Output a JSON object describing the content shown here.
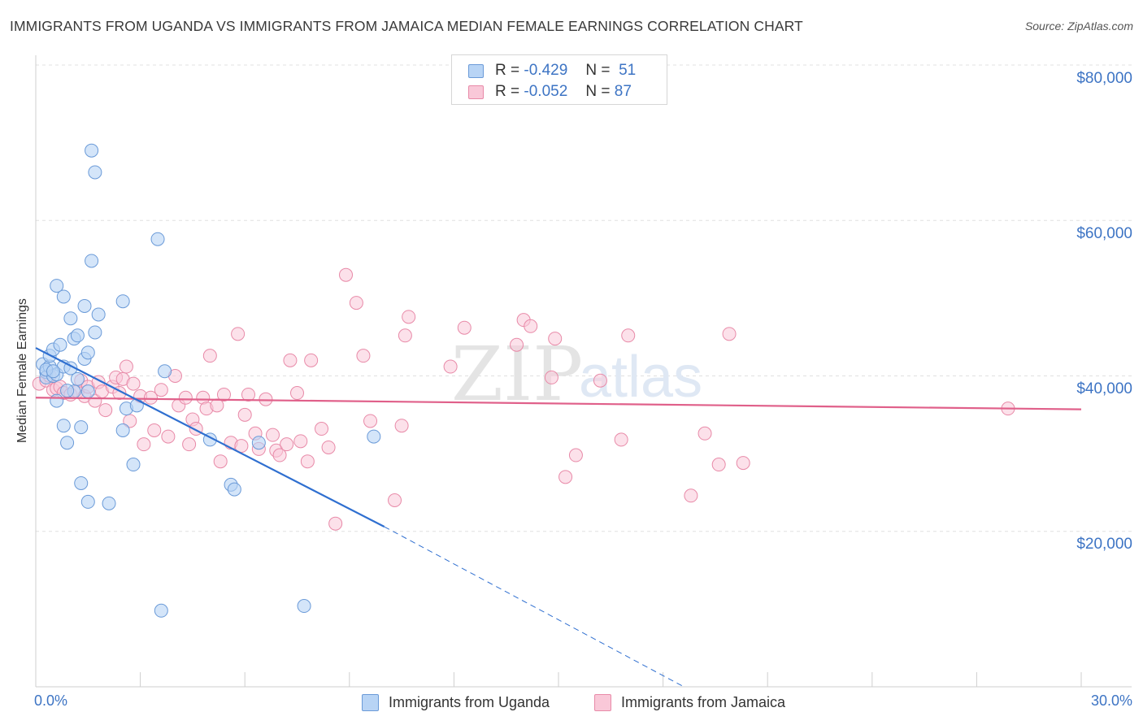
{
  "title": "IMMIGRANTS FROM UGANDA VS IMMIGRANTS FROM JAMAICA MEDIAN FEMALE EARNINGS CORRELATION CHART",
  "source": "Source: ZipAtlas.com",
  "watermark": {
    "zip": "ZIP",
    "atlas": "atlas"
  },
  "stats": {
    "uganda": {
      "r_label": "R =",
      "r_value": "-0.429",
      "n_label": "N =",
      "n_value": "51"
    },
    "jamaica": {
      "r_label": "R =",
      "r_value": "-0.052",
      "n_label": "N =",
      "n_value": "87"
    }
  },
  "legend": {
    "uganda": "Immigrants from Uganda",
    "jamaica": "Immigrants from Jamaica"
  },
  "colors": {
    "uganda_fill": "#b8d4f5",
    "uganda_stroke": "#6a9ad8",
    "uganda_line": "#2f6fd0",
    "jamaica_fill": "#f9c8d8",
    "jamaica_stroke": "#e88aa8",
    "jamaica_line": "#e0608a",
    "tick_text": "#3d74c4",
    "grid": "#e0e0e0"
  },
  "chart_data": {
    "type": "scatter",
    "title": "IMMIGRANTS FROM UGANDA VS IMMIGRANTS FROM JAMAICA MEDIAN FEMALE EARNINGS CORRELATION CHART",
    "xlabel": "",
    "ylabel": "Median Female Earnings",
    "xlim": [
      0,
      30
    ],
    "ylim": [
      0,
      80000
    ],
    "ytick_values": [
      20000,
      40000,
      60000,
      80000
    ],
    "ytick_labels": [
      "$20,000",
      "$40,000",
      "$60,000",
      "$80,000"
    ],
    "xtick_values": [
      0,
      3,
      6,
      9,
      12,
      15,
      18,
      21,
      24,
      27,
      30
    ],
    "xtick_labels_shown": [
      "0.0%",
      "30.0%"
    ],
    "grid": true,
    "series": [
      {
        "name": "Immigrants from Uganda",
        "r": -0.429,
        "n": 51,
        "trend": {
          "x_start": 0,
          "y_start": 43600,
          "x_solid_end": 10,
          "y_solid_end": 20600,
          "x_dashed_end": 18.6,
          "y_dashed_end": 0
        },
        "points": [
          [
            0.2,
            41.5
          ],
          [
            0.3,
            40.5
          ],
          [
            0.3,
            39.8
          ],
          [
            0.4,
            41.2
          ],
          [
            0.4,
            42.6
          ],
          [
            0.5,
            40.0
          ],
          [
            0.5,
            43.4
          ],
          [
            0.6,
            51.6
          ],
          [
            0.6,
            40.2
          ],
          [
            0.6,
            36.8
          ],
          [
            0.7,
            44.0
          ],
          [
            0.8,
            33.6
          ],
          [
            0.8,
            41.2
          ],
          [
            0.8,
            50.2
          ],
          [
            0.9,
            31.4
          ],
          [
            1.0,
            47.4
          ],
          [
            1.1,
            44.8
          ],
          [
            1.1,
            38.0
          ],
          [
            1.2,
            39.6
          ],
          [
            1.2,
            45.2
          ],
          [
            1.3,
            33.4
          ],
          [
            1.3,
            26.2
          ],
          [
            1.4,
            49.0
          ],
          [
            1.4,
            42.2
          ],
          [
            1.5,
            43.0
          ],
          [
            1.5,
            38.0
          ],
          [
            1.5,
            23.8
          ],
          [
            1.6,
            54.8
          ],
          [
            1.6,
            69.0
          ],
          [
            1.7,
            66.2
          ],
          [
            1.7,
            45.6
          ],
          [
            1.8,
            47.9
          ],
          [
            2.1,
            23.6
          ],
          [
            2.5,
            33.0
          ],
          [
            2.5,
            49.6
          ],
          [
            2.6,
            35.8
          ],
          [
            2.8,
            28.6
          ],
          [
            2.9,
            36.2
          ],
          [
            3.5,
            57.6
          ],
          [
            3.6,
            9.8
          ],
          [
            3.7,
            40.6
          ],
          [
            5.0,
            31.8
          ],
          [
            5.6,
            26.0
          ],
          [
            5.7,
            25.4
          ],
          [
            6.4,
            31.4
          ],
          [
            7.7,
            10.4
          ],
          [
            9.7,
            32.2
          ],
          [
            0.3,
            40.8
          ],
          [
            0.5,
            40.6
          ],
          [
            0.9,
            38.1
          ],
          [
            1.0,
            41.0
          ]
        ]
      },
      {
        "name": "Immigrants from Jamaica",
        "r": -0.052,
        "n": 87,
        "trend": {
          "x_start": 0,
          "y_start": 37200,
          "x_end": 30,
          "y_end": 35700
        },
        "points": [
          [
            0.1,
            39.0
          ],
          [
            0.3,
            39.4
          ],
          [
            0.4,
            40.0
          ],
          [
            0.5,
            38.2
          ],
          [
            0.6,
            38.4
          ],
          [
            0.7,
            38.6
          ],
          [
            0.8,
            37.8
          ],
          [
            1.0,
            37.6
          ],
          [
            1.2,
            38.0
          ],
          [
            1.3,
            39.4
          ],
          [
            1.4,
            37.4
          ],
          [
            1.5,
            38.6
          ],
          [
            1.7,
            36.8
          ],
          [
            1.8,
            39.2
          ],
          [
            1.9,
            38.0
          ],
          [
            2.0,
            35.6
          ],
          [
            2.2,
            38.6
          ],
          [
            2.3,
            39.8
          ],
          [
            2.4,
            37.8
          ],
          [
            2.5,
            39.6
          ],
          [
            2.6,
            41.2
          ],
          [
            2.7,
            34.2
          ],
          [
            2.8,
            39.0
          ],
          [
            3.0,
            37.4
          ],
          [
            3.1,
            31.2
          ],
          [
            3.3,
            37.2
          ],
          [
            3.4,
            33.0
          ],
          [
            3.6,
            38.2
          ],
          [
            3.8,
            32.2
          ],
          [
            4.0,
            40.0
          ],
          [
            4.1,
            36.2
          ],
          [
            4.3,
            37.2
          ],
          [
            4.4,
            31.2
          ],
          [
            4.5,
            34.4
          ],
          [
            4.6,
            33.2
          ],
          [
            4.8,
            37.2
          ],
          [
            4.9,
            35.8
          ],
          [
            5.0,
            42.6
          ],
          [
            5.2,
            36.2
          ],
          [
            5.3,
            29.0
          ],
          [
            5.4,
            37.6
          ],
          [
            5.6,
            31.4
          ],
          [
            5.8,
            45.4
          ],
          [
            5.9,
            31.0
          ],
          [
            6.0,
            35.0
          ],
          [
            6.1,
            37.6
          ],
          [
            6.3,
            32.6
          ],
          [
            6.4,
            30.6
          ],
          [
            6.6,
            37.0
          ],
          [
            6.8,
            32.4
          ],
          [
            6.9,
            30.4
          ],
          [
            7.0,
            29.8
          ],
          [
            7.2,
            31.2
          ],
          [
            7.3,
            42.0
          ],
          [
            7.5,
            37.8
          ],
          [
            7.6,
            31.6
          ],
          [
            7.8,
            29.0
          ],
          [
            7.9,
            42.0
          ],
          [
            8.2,
            33.2
          ],
          [
            8.4,
            30.8
          ],
          [
            8.6,
            21.0
          ],
          [
            8.9,
            53.0
          ],
          [
            9.2,
            49.4
          ],
          [
            9.4,
            42.6
          ],
          [
            9.6,
            34.2
          ],
          [
            10.3,
            24.0
          ],
          [
            10.5,
            33.6
          ],
          [
            10.6,
            45.2
          ],
          [
            10.7,
            47.6
          ],
          [
            11.9,
            41.2
          ],
          [
            12.3,
            46.2
          ],
          [
            13.8,
            44.0
          ],
          [
            14.0,
            47.2
          ],
          [
            14.2,
            46.4
          ],
          [
            14.8,
            39.8
          ],
          [
            14.9,
            44.8
          ],
          [
            15.2,
            27.0
          ],
          [
            15.5,
            29.8
          ],
          [
            16.2,
            39.4
          ],
          [
            16.8,
            31.8
          ],
          [
            17.0,
            45.2
          ],
          [
            18.8,
            24.6
          ],
          [
            19.2,
            32.6
          ],
          [
            19.6,
            28.6
          ],
          [
            19.9,
            45.4
          ],
          [
            20.3,
            28.8
          ],
          [
            27.9,
            35.8
          ]
        ]
      }
    ],
    "point_units": "x in percent, y in thousands of dollars"
  }
}
